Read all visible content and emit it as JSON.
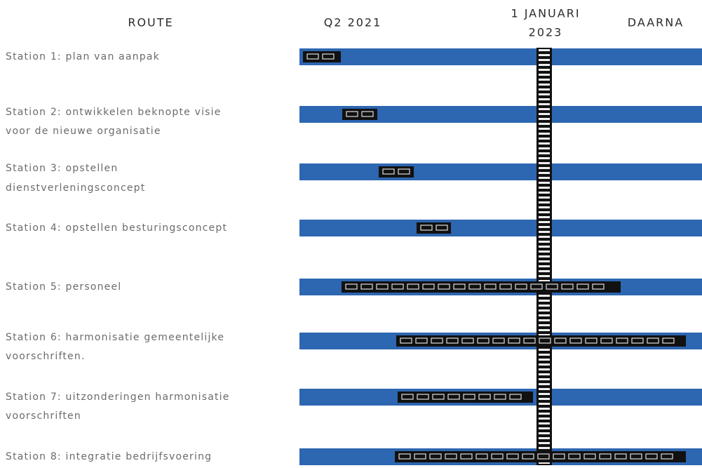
{
  "header": {
    "columns": [
      {
        "lines": [
          "ROUTE"
        ]
      },
      {
        "lines": [
          "Q2 2021"
        ]
      },
      {
        "lines": [
          "1 JANUARI",
          "2023"
        ]
      },
      {
        "lines": [
          "DAARNA"
        ]
      }
    ]
  },
  "stations": [
    {
      "lines": [
        "Station 1: plan van aanpak"
      ]
    },
    {
      "lines": [
        "Station 2: ontwikkelen beknopte visie",
        "voor de nieuwe organisatie"
      ]
    },
    {
      "lines": [
        "Station 3: opstellen",
        "dienstverleningsconcept"
      ]
    },
    {
      "lines": [
        "Station 4: opstellen besturingsconcept"
      ]
    },
    {
      "lines": [
        "Station 5: personeel"
      ]
    },
    {
      "lines": [
        "Station 6: harmonisatie gemeentelijke",
        "voorschriften."
      ]
    },
    {
      "lines": [
        "Station 7: uitzonderingen harmonisatie",
        "voorschriften"
      ]
    },
    {
      "lines": [
        "Station 8: integratie bedrijfsvoering"
      ]
    }
  ]
}
